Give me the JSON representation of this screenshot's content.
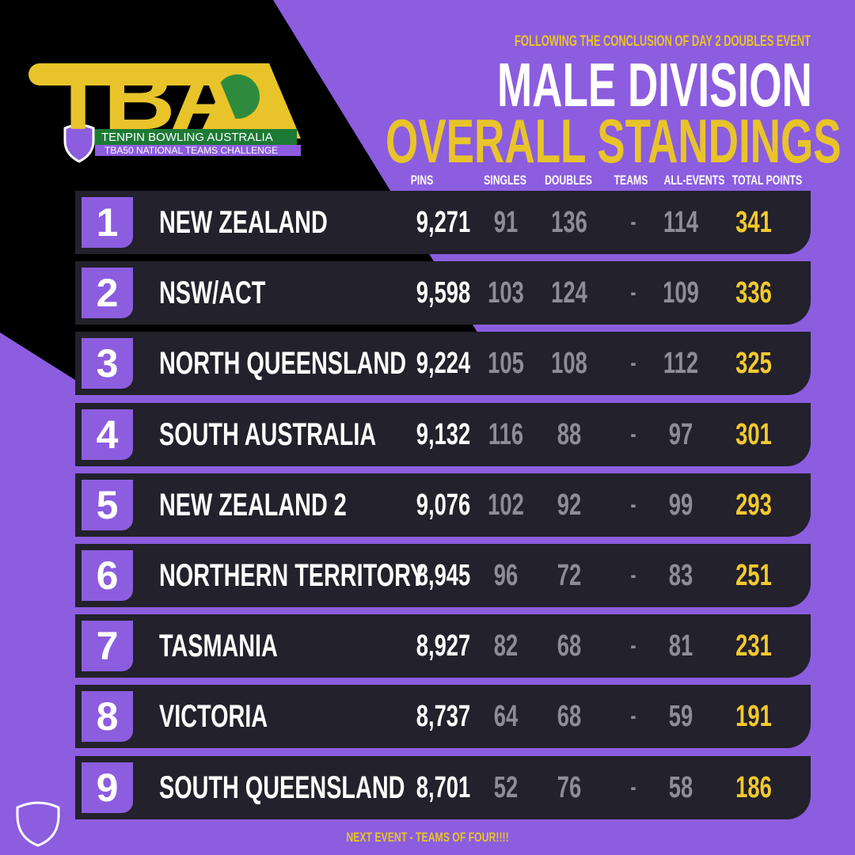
{
  "logo": {
    "mark": "TBA",
    "name": "TENPIN BOWLING AUSTRALIA",
    "event": "TBA50 NATIONAL TEAMS CHALLENGE"
  },
  "header": {
    "subtitle": "FOLLOWING THE CONCLUSION OF DAY 2 DOUBLES EVENT",
    "title": "MALE DIVISION",
    "title2": "OVERALL STANDINGS"
  },
  "table": {
    "columns": [
      "PINS",
      "SINGLES",
      "DOUBLES",
      "TEAMS",
      "ALL-EVENTS",
      "TOTAL POINTS"
    ],
    "rows": [
      [
        1,
        "NEW ZEALAND",
        "9,271",
        91,
        136,
        "-",
        114,
        341
      ],
      [
        2,
        "NSW/ACT",
        "9,598",
        103,
        124,
        "-",
        109,
        336
      ],
      [
        3,
        "NORTH QUEENSLAND",
        "9,224",
        105,
        108,
        "-",
        112,
        325
      ],
      [
        4,
        "SOUTH AUSTRALIA",
        "9,132",
        116,
        88,
        "-",
        97,
        301
      ],
      [
        5,
        "NEW ZEALAND 2",
        "9,076",
        102,
        92,
        "-",
        99,
        293
      ],
      [
        6,
        "NORTHERN TERRITORY",
        "8,945",
        96,
        72,
        "-",
        83,
        251
      ],
      [
        7,
        "TASMANIA",
        "8,927",
        82,
        68,
        "-",
        81,
        231
      ],
      [
        8,
        "VICTORIA",
        "8,737",
        64,
        68,
        "-",
        59,
        191
      ],
      [
        9,
        "SOUTH QUEENSLAND",
        "8,701",
        52,
        76,
        "-",
        58,
        186
      ]
    ]
  },
  "footer": "NEXT EVENT - TEAMS OF FOUR!!!!"
}
